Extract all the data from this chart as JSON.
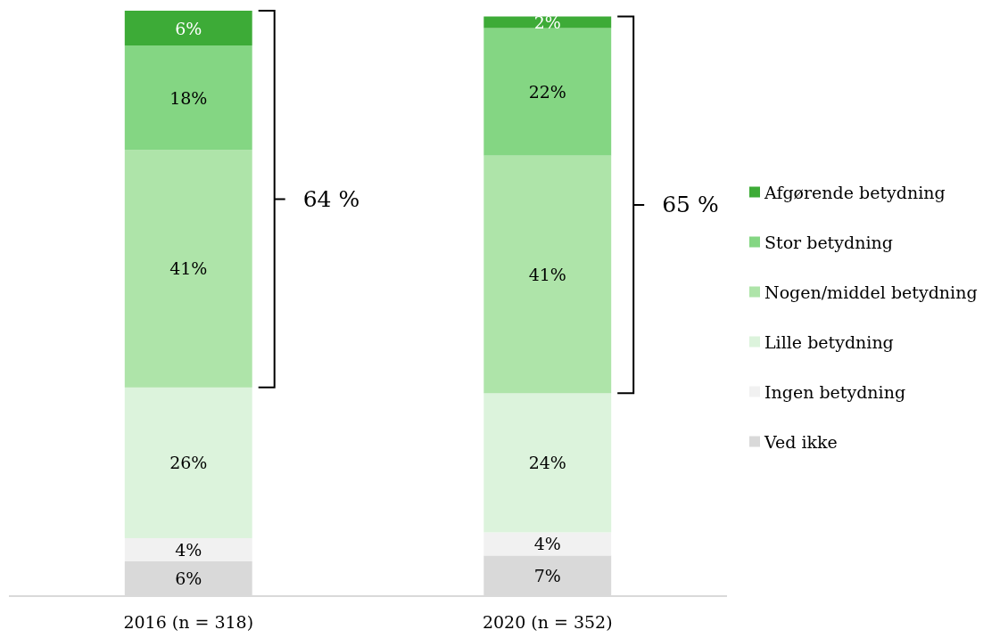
{
  "chart_data": {
    "type": "bar",
    "stacked": true,
    "categories": [
      "2016 (n = 318)",
      "2020 (n = 352)"
    ],
    "series": [
      {
        "name": "Ved ikke",
        "color": "#d9d9d9",
        "values": [
          6,
          7
        ],
        "value_labels": [
          "6%",
          "7%"
        ]
      },
      {
        "name": "Ingen betydning",
        "color": "#f1f1f1",
        "values": [
          4,
          4
        ],
        "value_labels": [
          "4%",
          "4%"
        ]
      },
      {
        "name": "Lille betydning",
        "color": "#dcf3dc",
        "values": [
          26,
          24
        ],
        "value_labels": [
          "26%",
          "24%"
        ]
      },
      {
        "name": "Nogen/middel betydning",
        "color": "#aee4a9",
        "values": [
          41,
          41
        ],
        "value_labels": [
          "41%",
          "41%"
        ]
      },
      {
        "name": "Stor betydning",
        "color": "#84d683",
        "values": [
          18,
          22
        ],
        "value_labels": [
          "18%",
          "22%"
        ]
      },
      {
        "name": "Afgørende betydning",
        "color": "#3dab37",
        "values": [
          6,
          2
        ],
        "value_labels": [
          "6%",
          "2%"
        ]
      }
    ],
    "annotations": [
      "64 %",
      "65 %"
    ],
    "legend": "right",
    "tick_labels": "x"
  }
}
